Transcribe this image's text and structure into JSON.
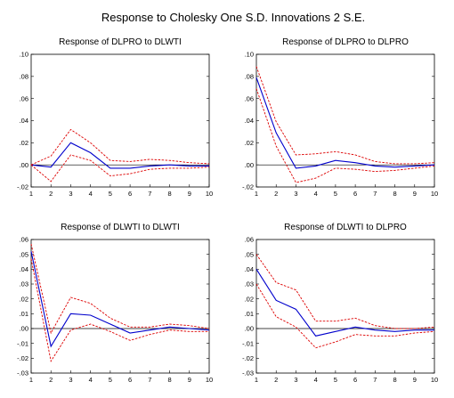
{
  "figure": {
    "title": "Response to Cholesky One S.D. Innovations    2 S.E."
  },
  "colors": {
    "response": "#0000cc",
    "band": "#dd0000",
    "axis": "#000000",
    "zero": "#000000"
  },
  "chart_data": [
    {
      "type": "line",
      "title": "Response of DLPRO to DLWTI",
      "x": [
        1,
        2,
        3,
        4,
        5,
        6,
        7,
        8,
        9,
        10
      ],
      "ylim": [
        -0.02,
        0.1
      ],
      "yticks": [
        ".10",
        ".08",
        ".06",
        ".04",
        ".02",
        ".00",
        "-.02"
      ],
      "ytick_values": [
        0.1,
        0.08,
        0.06,
        0.04,
        0.02,
        0.0,
        -0.02
      ],
      "xticks": [
        "1",
        "2",
        "3",
        "4",
        "5",
        "6",
        "7",
        "8",
        "9",
        "10"
      ],
      "grid": false,
      "series": [
        {
          "role": "response",
          "values": [
            0.0,
            -0.002,
            0.02,
            0.011,
            -0.003,
            -0.003,
            -0.001,
            0.0,
            -0.001,
            -0.001
          ]
        },
        {
          "role": "upper-band",
          "values": [
            0.0,
            0.008,
            0.032,
            0.02,
            0.004,
            0.003,
            0.005,
            0.004,
            0.002,
            0.001
          ]
        },
        {
          "role": "lower-band",
          "values": [
            0.0,
            -0.015,
            0.009,
            0.004,
            -0.01,
            -0.008,
            -0.004,
            -0.003,
            -0.003,
            -0.002
          ]
        }
      ]
    },
    {
      "type": "line",
      "title": "Response of DLPRO to DLPRO",
      "x": [
        1,
        2,
        3,
        4,
        5,
        6,
        7,
        8,
        9,
        10
      ],
      "ylim": [
        -0.02,
        0.1
      ],
      "yticks": [
        ".10",
        ".08",
        ".06",
        ".04",
        ".02",
        ".00",
        "-.02"
      ],
      "ytick_values": [
        0.1,
        0.08,
        0.06,
        0.04,
        0.02,
        0.0,
        -0.02
      ],
      "xticks": [
        "1",
        "2",
        "3",
        "4",
        "5",
        "6",
        "7",
        "8",
        "9",
        "10"
      ],
      "grid": false,
      "series": [
        {
          "role": "response",
          "values": [
            0.079,
            0.029,
            -0.003,
            -0.001,
            0.004,
            0.002,
            -0.001,
            -0.002,
            -0.001,
            0.0
          ]
        },
        {
          "role": "upper-band",
          "values": [
            0.089,
            0.039,
            0.009,
            0.01,
            0.012,
            0.009,
            0.003,
            0.001,
            0.001,
            0.002
          ]
        },
        {
          "role": "lower-band",
          "values": [
            0.069,
            0.017,
            -0.016,
            -0.012,
            -0.003,
            -0.004,
            -0.006,
            -0.005,
            -0.003,
            -0.001
          ]
        }
      ]
    },
    {
      "type": "line",
      "title": "Response of DLWTI to DLWTI",
      "x": [
        1,
        2,
        3,
        4,
        5,
        6,
        7,
        8,
        9,
        10
      ],
      "ylim": [
        -0.03,
        0.06
      ],
      "yticks": [
        ".06",
        ".05",
        ".04",
        ".03",
        ".02",
        ".01",
        ".00",
        "-.01",
        "-.02",
        "-.03"
      ],
      "ytick_values": [
        0.06,
        0.05,
        0.04,
        0.03,
        0.02,
        0.01,
        0.0,
        -0.01,
        -0.02,
        -0.03
      ],
      "xticks": [
        "1",
        "2",
        "3",
        "4",
        "5",
        "6",
        "7",
        "8",
        "9",
        "10"
      ],
      "grid": false,
      "series": [
        {
          "role": "response",
          "values": [
            0.052,
            -0.012,
            0.01,
            0.009,
            0.003,
            -0.003,
            -0.001,
            0.001,
            0.0,
            -0.001
          ]
        },
        {
          "role": "upper-band",
          "values": [
            0.057,
            -0.003,
            0.021,
            0.017,
            0.007,
            0.001,
            0.001,
            0.003,
            0.002,
            0.0
          ]
        },
        {
          "role": "lower-band",
          "values": [
            0.047,
            -0.022,
            -0.001,
            0.003,
            -0.002,
            -0.008,
            -0.004,
            -0.001,
            -0.002,
            -0.002
          ]
        }
      ]
    },
    {
      "type": "line",
      "title": "Response of DLWTI to DLPRO",
      "x": [
        1,
        2,
        3,
        4,
        5,
        6,
        7,
        8,
        9,
        10
      ],
      "ylim": [
        -0.03,
        0.06
      ],
      "yticks": [
        ".06",
        ".05",
        ".04",
        ".03",
        ".02",
        ".01",
        ".00",
        "-.01",
        "-.02",
        "-.03"
      ],
      "ytick_values": [
        0.06,
        0.05,
        0.04,
        0.03,
        0.02,
        0.01,
        0.0,
        -0.01,
        -0.02,
        -0.03
      ],
      "xticks": [
        "1",
        "2",
        "3",
        "4",
        "5",
        "6",
        "7",
        "8",
        "9",
        "10"
      ],
      "grid": false,
      "series": [
        {
          "role": "response",
          "values": [
            0.04,
            0.019,
            0.013,
            -0.005,
            -0.002,
            0.001,
            -0.001,
            -0.002,
            -0.001,
            -0.001
          ]
        },
        {
          "role": "upper-band",
          "values": [
            0.05,
            0.031,
            0.026,
            0.005,
            0.005,
            0.007,
            0.002,
            0.0,
            0.0,
            0.001
          ]
        },
        {
          "role": "lower-band",
          "values": [
            0.03,
            0.008,
            0.001,
            -0.013,
            -0.009,
            -0.004,
            -0.005,
            -0.005,
            -0.003,
            -0.002
          ]
        }
      ]
    }
  ]
}
